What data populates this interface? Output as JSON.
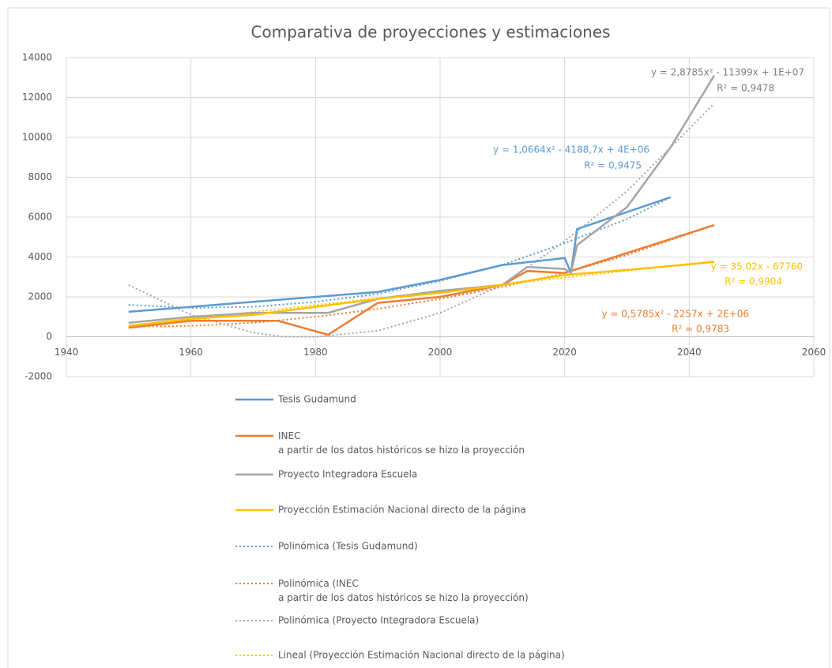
{
  "chart_data": {
    "type": "line",
    "title": "Comparativa de proyecciones y estimaciones",
    "xlim": [
      1940,
      2060
    ],
    "xticks": [
      1940,
      1960,
      1980,
      2000,
      2020,
      2040,
      2060
    ],
    "ylim": [
      -2000,
      14000
    ],
    "yticks": [
      -2000,
      0,
      2000,
      4000,
      6000,
      8000,
      10000,
      12000,
      14000
    ],
    "grid": true,
    "legend": "bottom",
    "series": [
      {
        "name": "Tesis Gudamund",
        "color": "#5b9bd5",
        "style": "solid",
        "x": [
          1950,
          1960,
          1970,
          1980,
          1990,
          2000,
          2010,
          2020,
          2021,
          2022,
          2037
        ],
        "values": [
          1250,
          1500,
          1750,
          2000,
          2250,
          2850,
          3600,
          3950,
          3200,
          5400,
          7000
        ]
      },
      {
        "name": "INEC\na partir de los datos históricos se hizo la proyección",
        "color": "#ed7d31",
        "style": "solid",
        "x": [
          1950,
          1960,
          1974,
          1982,
          1990,
          2000,
          2010,
          2014,
          2020,
          2021,
          2030,
          2044
        ],
        "values": [
          450,
          800,
          800,
          100,
          1700,
          2000,
          2600,
          3300,
          3200,
          3300,
          4200,
          5600
        ]
      },
      {
        "name": "Proyecto Integradora Escuela",
        "color": "#a5a5a5",
        "style": "solid",
        "x": [
          1950,
          1960,
          1970,
          1982,
          1990,
          2000,
          2010,
          2014,
          2020,
          2021,
          2022,
          2030,
          2037,
          2044
        ],
        "values": [
          700,
          1000,
          1200,
          1200,
          1900,
          2300,
          2600,
          3500,
          3400,
          3200,
          4600,
          6500,
          9500,
          13100
        ]
      },
      {
        "name": "Proyección Estimación Nacional directo de la página",
        "color": "#ffc000",
        "style": "solid",
        "x": [
          1950,
          1960,
          1970,
          1980,
          1990,
          2000,
          2010,
          2020,
          2030,
          2044
        ],
        "values": [
          550,
          900,
          1100,
          1500,
          1900,
          2200,
          2600,
          3100,
          3350,
          3750
        ]
      },
      {
        "name": "Polinómica (Tesis Gudamund)",
        "color": "#5b9bd5",
        "style": "dotted",
        "x": [
          1950,
          1960,
          1970,
          1980,
          1990,
          2000,
          2010,
          2020,
          2030,
          2037
        ],
        "values": [
          1600,
          1450,
          1500,
          1750,
          2150,
          2800,
          3600,
          4700,
          5900,
          7000
        ]
      },
      {
        "name": "Polinómica (INEC\na partir de los datos históricos se hizo la proyección)",
        "color": "#ed7d31",
        "style": "dotted",
        "x": [
          1950,
          1960,
          1970,
          1980,
          1990,
          2000,
          2010,
          2020,
          2030,
          2044
        ],
        "values": [
          500,
          550,
          700,
          1000,
          1400,
          1900,
          2500,
          3200,
          4100,
          5600
        ]
      },
      {
        "name": "Polinómica (Proyecto Integradora Escuela)",
        "color": "#a5a5a5",
        "style": "dotted",
        "x": [
          1950,
          1960,
          1970,
          1975,
          1980,
          1990,
          2000,
          2010,
          2020,
          2030,
          2044
        ],
        "values": [
          2600,
          1100,
          200,
          0,
          0,
          300,
          1200,
          2600,
          4800,
          7300,
          11700
        ]
      },
      {
        "name": "Lineal (Proyección Estimación Nacional directo de la página)",
        "color": "#ffc000",
        "style": "dotted",
        "x": [
          1950,
          2044
        ],
        "values": [
          550,
          3800
        ]
      }
    ],
    "annotations": [
      {
        "color": "#7f7f7f",
        "lines": [
          "y = 2,8785x² - 11399x + 1E+07",
          "R² = 0,9478"
        ]
      },
      {
        "color": "#5b9bd5",
        "lines": [
          "y = 1,0664x² - 4188,7x + 4E+06",
          "R² = 0,9475"
        ]
      },
      {
        "color": "#ffc000",
        "lines": [
          "y = 35,02x - 67760",
          "R² = 0,9904"
        ]
      },
      {
        "color": "#ed7d31",
        "lines": [
          "y = 0,5785x² - 2257x + 2E+06",
          "R² = 0,9783"
        ]
      }
    ]
  }
}
